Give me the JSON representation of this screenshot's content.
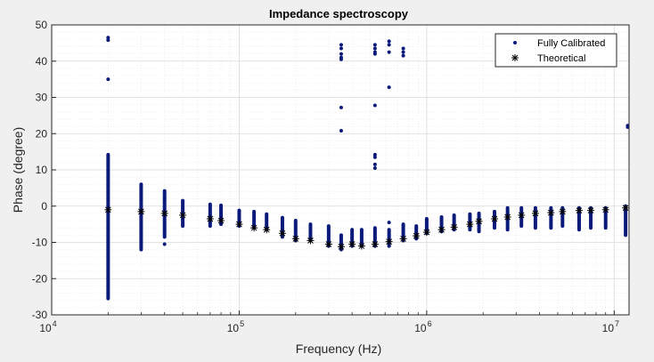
{
  "chart_data": {
    "type": "scatter",
    "title": "Impedance spectroscopy",
    "xlabel": "Frequency (Hz)",
    "ylabel": "Phase (degree)",
    "xscale": "log",
    "xlim": [
      10000,
      12000000
    ],
    "ylim": [
      -30,
      50
    ],
    "yticks": [
      -30,
      -20,
      -10,
      0,
      10,
      20,
      30,
      40,
      50
    ],
    "xticks": [
      {
        "value": 10000,
        "base": "10",
        "exp": "4"
      },
      {
        "value": 100000,
        "base": "10",
        "exp": "5"
      },
      {
        "value": 1000000,
        "base": "10",
        "exp": "6"
      },
      {
        "value": 10000000,
        "base": "10",
        "exp": "7"
      }
    ],
    "grid": true,
    "minor_grid": true,
    "legend_position": "top-right",
    "colors": {
      "figure_bg": "#f0f0f0",
      "axes_bg": "#ffffff",
      "measured": "#0a1a7a",
      "theoretical": "#000000",
      "grid_major": "#d9d9d9",
      "grid_minor": "#e6e6e6",
      "axis": "#262626"
    },
    "series": [
      {
        "name": "Fully Calibrated",
        "marker": "dot",
        "points": [
          {
            "x": 20000,
            "ymin": -25.5,
            "ymax": 14.2
          },
          {
            "x": 30000,
            "ymin": -12,
            "ymax": 6
          },
          {
            "x": 40000,
            "ymin": -8.5,
            "ymax": 4.2
          },
          {
            "x": 50000,
            "ymin": -5.5,
            "ymax": 1.5
          },
          {
            "x": 70000,
            "ymin": -5.5,
            "ymax": 0.5
          },
          {
            "x": 80000,
            "ymin": -5,
            "ymax": 0.2
          },
          {
            "x": 100000,
            "ymin": -5.5,
            "ymax": -1.2
          },
          {
            "x": 120000,
            "ymin": -6,
            "ymax": -1.5
          },
          {
            "x": 140000,
            "ymin": -6.5,
            "ymax": -2.2
          },
          {
            "x": 170000,
            "ymin": -8.5,
            "ymax": -3.2
          },
          {
            "x": 200000,
            "ymin": -9.5,
            "ymax": -4
          },
          {
            "x": 240000,
            "ymin": -9.5,
            "ymax": -5
          },
          {
            "x": 300000,
            "ymin": -11,
            "ymax": -5.5
          },
          {
            "x": 350000,
            "ymin": -12,
            "ymax": -8
          },
          {
            "x": 400000,
            "ymin": -11,
            "ymax": -6.5
          },
          {
            "x": 450000,
            "ymin": -11,
            "ymax": -6.5
          },
          {
            "x": 530000,
            "ymin": -11,
            "ymax": -6
          },
          {
            "x": 630000,
            "ymin": -11,
            "ymax": -6.5
          },
          {
            "x": 750000,
            "ymin": -9.5,
            "ymax": -5
          },
          {
            "x": 880000,
            "ymin": -9,
            "ymax": -5.5
          },
          {
            "x": 1000000,
            "ymin": -7.5,
            "ymax": -3.5
          },
          {
            "x": 1200000,
            "ymin": -7,
            "ymax": -3
          },
          {
            "x": 1400000,
            "ymin": -6.5,
            "ymax": -2.5
          },
          {
            "x": 1700000,
            "ymin": -6.5,
            "ymax": -2.2
          },
          {
            "x": 1900000,
            "ymin": -7,
            "ymax": -2
          },
          {
            "x": 2300000,
            "ymin": -6,
            "ymax": -1.5
          },
          {
            "x": 2700000,
            "ymin": -6.5,
            "ymax": -0.5
          },
          {
            "x": 3200000,
            "ymin": -5.5,
            "ymax": -0.5
          },
          {
            "x": 3800000,
            "ymin": -6,
            "ymax": -0.5
          },
          {
            "x": 4600000,
            "ymin": -6,
            "ymax": -0.5
          },
          {
            "x": 5300000,
            "ymin": -5.5,
            "ymax": -0.5
          },
          {
            "x": 6500000,
            "ymin": -6.5,
            "ymax": -0.5
          },
          {
            "x": 7500000,
            "ymin": -6,
            "ymax": -0.5
          },
          {
            "x": 9000000,
            "ymin": -6,
            "ymax": -0.5
          },
          {
            "x": 11500000,
            "ymin": -8,
            "ymax": 0
          }
        ],
        "outliers": [
          {
            "x": 20000,
            "y": 46.5
          },
          {
            "x": 20000,
            "y": 45.8
          },
          {
            "x": 20000,
            "y": 35
          },
          {
            "x": 40000,
            "y": -10.5
          },
          {
            "x": 350000,
            "y": 44.5
          },
          {
            "x": 350000,
            "y": 43.5
          },
          {
            "x": 350000,
            "y": 42
          },
          {
            "x": 350000,
            "y": 41
          },
          {
            "x": 350000,
            "y": 40.5
          },
          {
            "x": 350000,
            "y": 27.2
          },
          {
            "x": 350000,
            "y": 20.8
          },
          {
            "x": 530000,
            "y": 44.5
          },
          {
            "x": 530000,
            "y": 43.5
          },
          {
            "x": 530000,
            "y": 42.5
          },
          {
            "x": 530000,
            "y": 42
          },
          {
            "x": 530000,
            "y": 27.8
          },
          {
            "x": 530000,
            "y": 14.2
          },
          {
            "x": 530000,
            "y": 13.5
          },
          {
            "x": 530000,
            "y": 11.5
          },
          {
            "x": 530000,
            "y": 10.5
          },
          {
            "x": 630000,
            "y": 45.5
          },
          {
            "x": 630000,
            "y": 44.5
          },
          {
            "x": 630000,
            "y": 42.5
          },
          {
            "x": 630000,
            "y": 32.8
          },
          {
            "x": 630000,
            "y": -4.5
          },
          {
            "x": 750000,
            "y": 43.5
          },
          {
            "x": 750000,
            "y": 42.5
          },
          {
            "x": 750000,
            "y": 41.5
          },
          {
            "x": 11800000,
            "y": 22.2
          },
          {
            "x": 11800000,
            "y": 21.8
          }
        ]
      },
      {
        "name": "Theoretical",
        "marker": "asterisk",
        "points": [
          {
            "x": 20000,
            "y": -1
          },
          {
            "x": 30000,
            "y": -1.5
          },
          {
            "x": 40000,
            "y": -2
          },
          {
            "x": 50000,
            "y": -2.5
          },
          {
            "x": 70000,
            "y": -3.5
          },
          {
            "x": 80000,
            "y": -4
          },
          {
            "x": 100000,
            "y": -5
          },
          {
            "x": 120000,
            "y": -6
          },
          {
            "x": 140000,
            "y": -6.5
          },
          {
            "x": 170000,
            "y": -7.5
          },
          {
            "x": 200000,
            "y": -9
          },
          {
            "x": 240000,
            "y": -9.5
          },
          {
            "x": 300000,
            "y": -10.5
          },
          {
            "x": 350000,
            "y": -11.2
          },
          {
            "x": 400000,
            "y": -10.5
          },
          {
            "x": 450000,
            "y": -11
          },
          {
            "x": 530000,
            "y": -10.5
          },
          {
            "x": 630000,
            "y": -9.8
          },
          {
            "x": 750000,
            "y": -9
          },
          {
            "x": 880000,
            "y": -8.2
          },
          {
            "x": 1000000,
            "y": -7.2
          },
          {
            "x": 1200000,
            "y": -6.5
          },
          {
            "x": 1400000,
            "y": -5.8
          },
          {
            "x": 1700000,
            "y": -5
          },
          {
            "x": 1900000,
            "y": -4.2
          },
          {
            "x": 2300000,
            "y": -3.5
          },
          {
            "x": 2700000,
            "y": -3
          },
          {
            "x": 3200000,
            "y": -2.5
          },
          {
            "x": 3800000,
            "y": -2
          },
          {
            "x": 4600000,
            "y": -1.8
          },
          {
            "x": 5300000,
            "y": -1.5
          },
          {
            "x": 6500000,
            "y": -1.2
          },
          {
            "x": 7500000,
            "y": -1.2
          },
          {
            "x": 9000000,
            "y": -1
          },
          {
            "x": 11500000,
            "y": -0.5
          }
        ]
      }
    ]
  }
}
